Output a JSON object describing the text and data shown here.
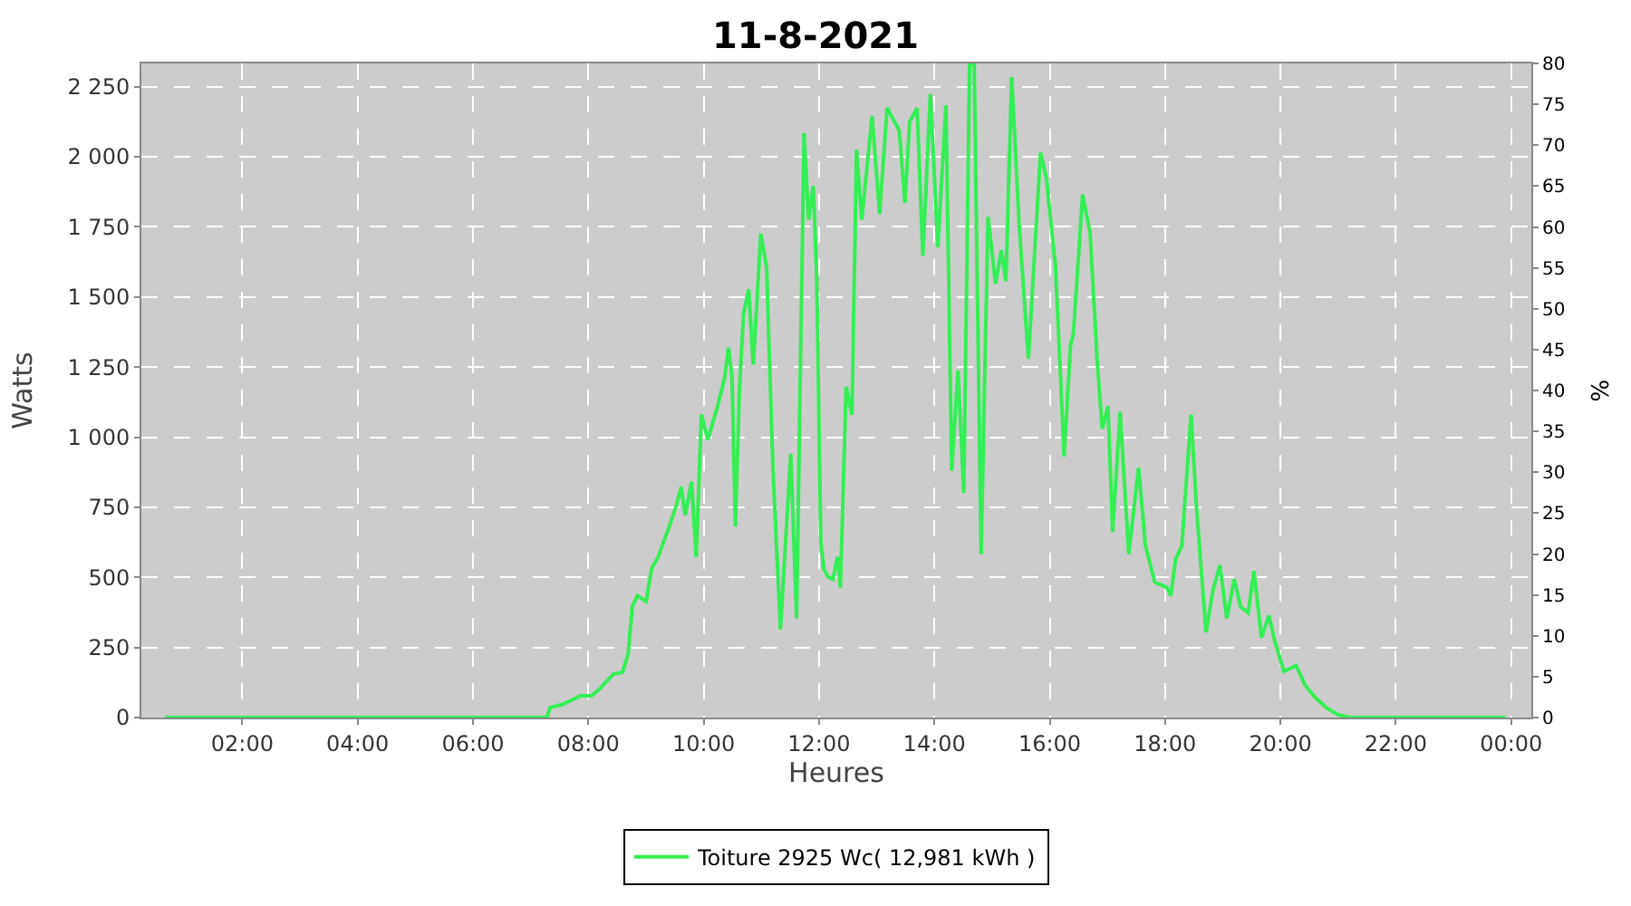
{
  "chart_data": {
    "type": "line",
    "title": "11-8-2021",
    "xlabel": "Heures",
    "ylabel": "Watts",
    "y2label": "%",
    "x": [
      0.66,
      7.28,
      7.34,
      7.54,
      7.86,
      8.06,
      8.22,
      8.43,
      8.59,
      8.69,
      8.76,
      8.85,
      9.0,
      9.1,
      9.21,
      9.37,
      9.52,
      9.61,
      9.68,
      9.79,
      9.87,
      9.96,
      10.07,
      10.24,
      10.36,
      10.43,
      10.49,
      10.55,
      10.62,
      10.69,
      10.78,
      10.86,
      10.99,
      11.09,
      11.2,
      11.33,
      11.51,
      11.61,
      11.74,
      11.82,
      11.9,
      11.96,
      12.03,
      12.08,
      12.15,
      12.24,
      12.32,
      12.37,
      12.47,
      12.57,
      12.65,
      12.74,
      12.92,
      13.05,
      13.18,
      13.39,
      13.49,
      13.57,
      13.7,
      13.8,
      13.93,
      14.06,
      14.2,
      14.3,
      14.41,
      14.51,
      14.61,
      14.69,
      14.81,
      14.93,
      15.06,
      15.16,
      15.24,
      15.34,
      15.47,
      15.63,
      15.84,
      15.94,
      16.1,
      16.25,
      16.36,
      16.41,
      16.57,
      16.7,
      16.83,
      16.91,
      17.01,
      17.09,
      17.22,
      17.37,
      17.54,
      17.66,
      17.82,
      18.03,
      18.1,
      18.18,
      18.29,
      18.45,
      18.55,
      18.71,
      18.83,
      18.95,
      19.07,
      19.2,
      19.31,
      19.44,
      19.54,
      19.67,
      19.8,
      19.9,
      20.06,
      20.27,
      20.43,
      20.58,
      20.79,
      21.0,
      21.2,
      23.9
    ],
    "ylim": [
      0,
      2333
    ],
    "xlim": [
      0.25,
      24.35
    ],
    "y2lim": [
      0,
      80
    ],
    "xticks": [
      {
        "value": 2,
        "label": "02:00"
      },
      {
        "value": 4,
        "label": "04:00"
      },
      {
        "value": 6,
        "label": "06:00"
      },
      {
        "value": 8,
        "label": "08:00"
      },
      {
        "value": 10,
        "label": "10:00"
      },
      {
        "value": 12,
        "label": "12:00"
      },
      {
        "value": 14,
        "label": "14:00"
      },
      {
        "value": 16,
        "label": "16:00"
      },
      {
        "value": 18,
        "label": "18:00"
      },
      {
        "value": 20,
        "label": "20:00"
      },
      {
        "value": 22,
        "label": "22:00"
      },
      {
        "value": 24,
        "label": "00:00"
      }
    ],
    "yticks": [
      0,
      250,
      500,
      750,
      {
        "value": 1000,
        "label": "1 000"
      },
      {
        "value": 1250,
        "label": "1 250"
      },
      {
        "value": 1500,
        "label": "1 500"
      },
      {
        "value": 1750,
        "label": "1 750"
      },
      {
        "value": 2000,
        "label": "2 000"
      },
      {
        "value": 2250,
        "label": "2 250"
      }
    ],
    "y2ticks": [
      0,
      5,
      10,
      15,
      20,
      25,
      30,
      35,
      40,
      45,
      50,
      55,
      60,
      65,
      70,
      75,
      80
    ],
    "series": [
      {
        "name": "Toiture 2925 Wc( 12,981 kWh )",
        "color": "#33ee55",
        "values": [
          0,
          0,
          36,
          46,
          77,
          78,
          107,
          155,
          161,
          227,
          394,
          435,
          414,
          533,
          573,
          662,
          752,
          822,
          722,
          841,
          573,
          1080,
          991,
          1110,
          1209,
          1319,
          1219,
          682,
          1170,
          1438,
          1528,
          1259,
          1726,
          1607,
          891,
          314,
          941,
          354,
          2084,
          1776,
          1896,
          1568,
          633,
          533,
          503,
          493,
          573,
          464,
          1180,
          1080,
          2025,
          1776,
          2144,
          1796,
          2174,
          2094,
          1836,
          2124,
          2174,
          1647,
          2224,
          1677,
          2184,
          881,
          1239,
          801,
          2330,
          2330,
          583,
          1786,
          1547,
          1667,
          1557,
          2284,
          1756,
          1279,
          2015,
          1926,
          1607,
          931,
          1329,
          1369,
          1866,
          1726,
          1249,
          1030,
          1110,
          662,
          1090,
          583,
          891,
          613,
          483,
          464,
          434,
          563,
          613,
          1080,
          732,
          304,
          453,
          543,
          354,
          493,
          394,
          374,
          523,
          285,
          364,
          274,
          165,
          185,
          115,
          76,
          36,
          10,
          0,
          0
        ]
      }
    ],
    "grid": true,
    "legend": "bottom",
    "marker": "none",
    "line_style": "solid"
  }
}
